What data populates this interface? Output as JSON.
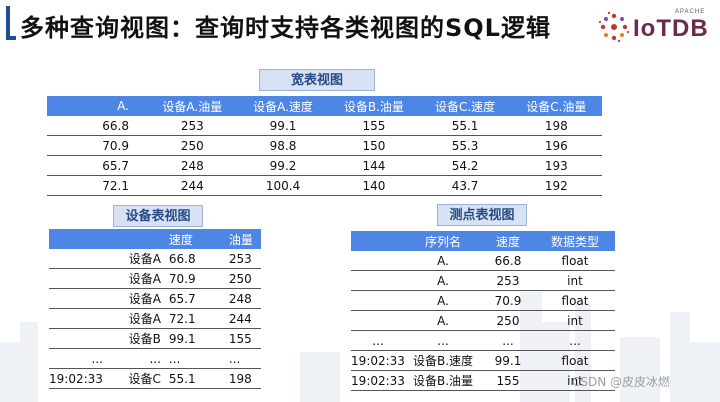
{
  "title": "多种查询视图：查询时支持各类视图的SQL逻辑",
  "logo": {
    "apache": "APACHE",
    "text": "IoTDB",
    "accent_color": "#6e2a4f"
  },
  "wide_view": {
    "label": "宽表视图",
    "headers": [
      "A.",
      "设备A.油量",
      "设备A.速度",
      "设备B.油量",
      "设备C.速度",
      "设备C.油量"
    ],
    "rows": [
      [
        "66.8",
        "253",
        "99.1",
        "155",
        "55.1",
        "198"
      ],
      [
        "70.9",
        "250",
        "98.8",
        "150",
        "55.3",
        "196"
      ],
      [
        "65.7",
        "248",
        "99.2",
        "144",
        "54.2",
        "193"
      ],
      [
        "72.1",
        "244",
        "100.4",
        "140",
        "43.7",
        "192"
      ]
    ]
  },
  "device_view": {
    "label": "设备表视图",
    "headers": [
      "",
      "",
      "速度",
      "油量"
    ],
    "rows": [
      [
        "",
        "设备A",
        "66.8",
        "253"
      ],
      [
        "",
        "设备A",
        "70.9",
        "250"
      ],
      [
        "",
        "设备A",
        "65.7",
        "248"
      ],
      [
        "",
        "设备A",
        "72.1",
        "244"
      ],
      [
        "",
        "设备B",
        "99.1",
        "155"
      ],
      [
        "...",
        "...",
        "...",
        "..."
      ],
      [
        "19:02:33",
        "设备C",
        "55.1",
        "198"
      ]
    ]
  },
  "point_view": {
    "label": "测点表视图",
    "headers": [
      "",
      "序列名",
      "速度",
      "数据类型"
    ],
    "rows": [
      [
        "",
        "A.",
        "66.8",
        "float"
      ],
      [
        "",
        "A.",
        "253",
        "int"
      ],
      [
        "",
        "A.",
        "70.9",
        "float"
      ],
      [
        "",
        "A.",
        "250",
        "int"
      ],
      [
        "...",
        "...",
        "...",
        "..."
      ],
      [
        "19:02:33",
        "设备B.速度",
        "99.1",
        "float"
      ],
      [
        "19:02:33",
        "设备B.油量",
        "155",
        "int"
      ]
    ]
  },
  "watermark": "CSDN @皮皮冰燃",
  "colors": {
    "header_blue": "#4e86e6",
    "label_bg": "#d7e3f5",
    "title_accent": "#1f4e96"
  }
}
